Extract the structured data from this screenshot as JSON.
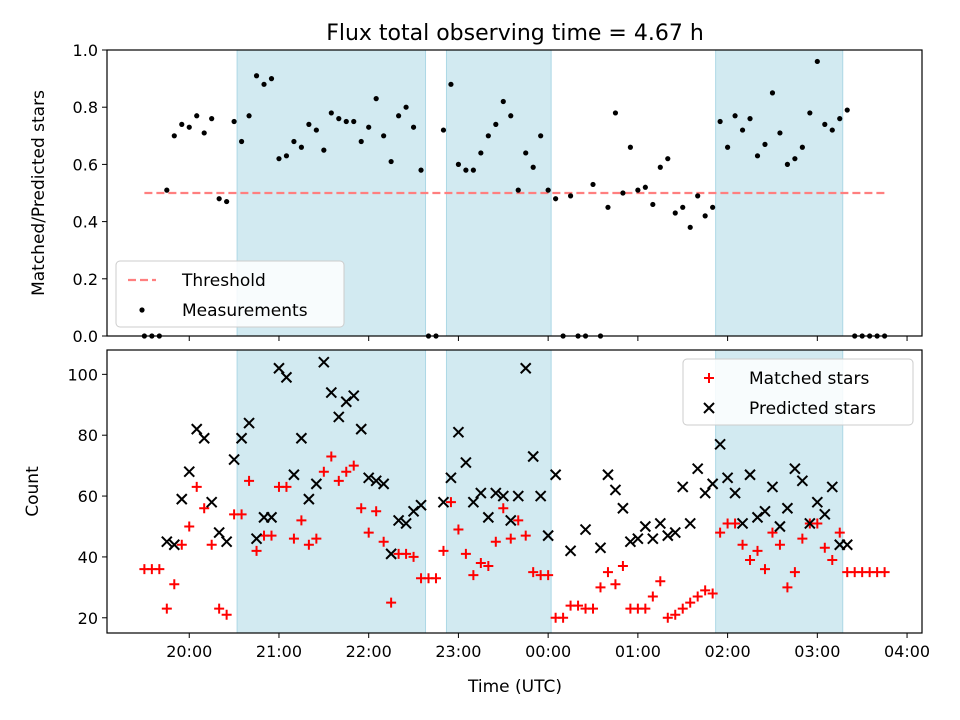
{
  "title": "Flux total observing time = 4.67 h",
  "xlabel": "Time (UTC)",
  "colors": {
    "shade": "#add8e6",
    "threshold": "#ff7f7f",
    "matched": "#ff0000",
    "predicted": "#000000",
    "measurement": "#000000"
  },
  "chart_data": [
    {
      "type": "scatter",
      "ylabel": "Matched/Predicted stars",
      "ylim": [
        0,
        1.0
      ],
      "yticks": [
        "0.0",
        "0.2",
        "0.4",
        "0.6",
        "0.8",
        "1.0"
      ],
      "xlim": [
        "19:05",
        "04:10"
      ],
      "xticks": [
        "20:00",
        "21:00",
        "22:00",
        "23:00",
        "00:00",
        "01:00",
        "02:00",
        "03:00",
        "04:00"
      ],
      "shaded_intervals": [
        [
          "20:32",
          "22:38"
        ],
        [
          "22:52",
          "00:02"
        ],
        [
          "01:52",
          "03:17"
        ]
      ],
      "legend": {
        "placement": "lower-left",
        "entries": [
          "Threshold",
          "Measurements"
        ]
      },
      "series": [
        {
          "name": "Threshold",
          "kind": "dashed-line",
          "x": [
            "19:30",
            "03:46"
          ],
          "y": [
            0.5,
            0.5
          ]
        },
        {
          "name": "Measurements",
          "kind": "points",
          "x": [
            "19:30",
            "19:35",
            "19:40",
            "19:45",
            "19:50",
            "19:55",
            "20:00",
            "20:05",
            "20:10",
            "20:15",
            "20:20",
            "20:25",
            "20:30",
            "20:35",
            "20:40",
            "20:45",
            "20:50",
            "20:55",
            "21:00",
            "21:05",
            "21:10",
            "21:15",
            "21:20",
            "21:25",
            "21:30",
            "21:35",
            "21:40",
            "21:45",
            "21:50",
            "21:55",
            "22:00",
            "22:05",
            "22:10",
            "22:15",
            "22:20",
            "22:25",
            "22:30",
            "22:35",
            "22:40",
            "22:45",
            "22:50",
            "22:55",
            "23:00",
            "23:05",
            "23:10",
            "23:15",
            "23:20",
            "23:25",
            "23:30",
            "23:35",
            "23:40",
            "23:45",
            "23:50",
            "23:55",
            "00:00",
            "00:05",
            "00:10",
            "00:15",
            "00:20",
            "00:25",
            "00:30",
            "00:35",
            "00:40",
            "00:45",
            "00:50",
            "00:55",
            "01:00",
            "01:05",
            "01:10",
            "01:15",
            "01:20",
            "01:25",
            "01:30",
            "01:35",
            "01:40",
            "01:45",
            "01:50",
            "01:55",
            "02:00",
            "02:05",
            "02:10",
            "02:15",
            "02:20",
            "02:25",
            "02:30",
            "02:35",
            "02:40",
            "02:45",
            "02:50",
            "02:55",
            "03:00",
            "03:05",
            "03:10",
            "03:15",
            "03:20",
            "03:25",
            "03:30",
            "03:35",
            "03:40",
            "03:45"
          ],
          "y": [
            0.0,
            0.0,
            0.0,
            0.51,
            0.7,
            0.74,
            0.73,
            0.77,
            0.71,
            0.76,
            0.48,
            0.47,
            0.75,
            0.68,
            0.77,
            0.91,
            0.88,
            0.9,
            0.62,
            0.63,
            0.68,
            0.66,
            0.74,
            0.72,
            0.65,
            0.78,
            0.76,
            0.75,
            0.75,
            0.68,
            0.73,
            0.83,
            0.7,
            0.61,
            0.77,
            0.8,
            0.73,
            0.58,
            0.0,
            0.0,
            0.72,
            0.88,
            0.6,
            0.58,
            0.58,
            0.64,
            0.7,
            0.74,
            0.82,
            0.77,
            0.51,
            0.64,
            0.59,
            0.7,
            0.51,
            0.48,
            0.0,
            0.49,
            0.0,
            0.0,
            0.53,
            0.0,
            0.45,
            0.78,
            0.5,
            0.66,
            0.51,
            0.52,
            0.46,
            0.59,
            0.62,
            0.43,
            0.45,
            0.38,
            0.49,
            0.42,
            0.45,
            0.75,
            0.66,
            0.77,
            0.72,
            0.76,
            0.63,
            0.67,
            0.85,
            0.71,
            0.6,
            0.62,
            0.66,
            0.78,
            0.96,
            0.74,
            0.72,
            0.76,
            0.79,
            0.0,
            0.0,
            0.0,
            0.0,
            0.0
          ]
        }
      ]
    },
    {
      "type": "scatter",
      "ylabel": "Count",
      "ylim": [
        15,
        108
      ],
      "yticks": [
        "20",
        "40",
        "60",
        "80",
        "100"
      ],
      "xlim": [
        "19:05",
        "04:10"
      ],
      "xticks": [
        "20:00",
        "21:00",
        "22:00",
        "23:00",
        "00:00",
        "01:00",
        "02:00",
        "03:00",
        "04:00"
      ],
      "shaded_intervals": [
        [
          "20:32",
          "22:38"
        ],
        [
          "22:52",
          "00:02"
        ],
        [
          "01:52",
          "03:17"
        ]
      ],
      "legend": {
        "placement": "top-right",
        "entries": [
          "Matched stars",
          "Predicted stars"
        ]
      },
      "series": [
        {
          "name": "Matched stars",
          "marker": "+",
          "x": [
            "19:30",
            "19:35",
            "19:40",
            "19:45",
            "19:50",
            "19:55",
            "20:00",
            "20:05",
            "20:10",
            "20:15",
            "20:20",
            "20:25",
            "20:30",
            "20:35",
            "20:40",
            "20:45",
            "20:50",
            "20:55",
            "21:00",
            "21:05",
            "21:10",
            "21:15",
            "21:20",
            "21:25",
            "21:30",
            "21:35",
            "21:40",
            "21:45",
            "21:50",
            "21:55",
            "22:00",
            "22:05",
            "22:10",
            "22:15",
            "22:20",
            "22:25",
            "22:30",
            "22:35",
            "22:40",
            "22:45",
            "22:50",
            "22:55",
            "23:00",
            "23:05",
            "23:10",
            "23:15",
            "23:20",
            "23:25",
            "23:30",
            "23:35",
            "23:40",
            "23:45",
            "23:50",
            "23:55",
            "00:00",
            "00:05",
            "00:10",
            "00:15",
            "00:20",
            "00:25",
            "00:30",
            "00:35",
            "00:40",
            "00:45",
            "00:50",
            "00:55",
            "01:00",
            "01:05",
            "01:10",
            "01:15",
            "01:20",
            "01:25",
            "01:30",
            "01:35",
            "01:40",
            "01:45",
            "01:50",
            "01:55",
            "02:00",
            "02:05",
            "02:10",
            "02:15",
            "02:20",
            "02:25",
            "02:30",
            "02:35",
            "02:40",
            "02:45",
            "02:50",
            "02:55",
            "03:00",
            "03:05",
            "03:10",
            "03:15",
            "03:20",
            "03:25",
            "03:30",
            "03:35",
            "03:40",
            "03:45"
          ],
          "y": [
            36,
            36,
            36,
            23,
            31,
            44,
            50,
            63,
            56,
            44,
            23,
            21,
            54,
            54,
            65,
            42,
            47,
            47,
            63,
            63,
            46,
            52,
            44,
            46,
            68,
            73,
            65,
            68,
            70,
            56,
            48,
            55,
            45,
            25,
            41,
            41,
            40,
            33,
            33,
            33,
            42,
            58,
            49,
            41,
            34,
            38,
            37,
            45,
            56,
            46,
            52,
            47,
            35,
            34,
            34,
            20,
            20,
            24,
            24,
            23,
            23,
            30,
            35,
            31,
            37,
            23,
            23,
            23,
            27,
            32,
            20,
            21,
            23,
            25,
            27,
            29,
            28,
            48,
            51,
            51,
            44,
            39,
            42,
            36,
            48,
            44,
            30,
            35,
            46,
            51,
            51,
            43,
            39,
            48,
            35,
            35,
            35,
            35,
            35,
            35
          ]
        },
        {
          "name": "Predicted stars",
          "marker": "x",
          "x": [
            "19:45",
            "19:50",
            "19:55",
            "20:00",
            "20:05",
            "20:10",
            "20:15",
            "20:20",
            "20:25",
            "20:30",
            "20:35",
            "20:40",
            "20:45",
            "20:50",
            "20:55",
            "21:00",
            "21:05",
            "21:10",
            "21:15",
            "21:20",
            "21:25",
            "21:30",
            "21:35",
            "21:40",
            "21:45",
            "21:50",
            "21:55",
            "22:00",
            "22:05",
            "22:10",
            "22:15",
            "22:20",
            "22:25",
            "22:30",
            "22:35",
            "22:50",
            "22:55",
            "23:00",
            "23:05",
            "23:10",
            "23:15",
            "23:20",
            "23:25",
            "23:30",
            "23:35",
            "23:40",
            "23:45",
            "23:50",
            "23:55",
            "00:00",
            "00:05",
            "00:15",
            "00:25",
            "00:35",
            "00:40",
            "00:45",
            "00:50",
            "00:55",
            "01:00",
            "01:05",
            "01:10",
            "01:15",
            "01:20",
            "01:25",
            "01:30",
            "01:35",
            "01:40",
            "01:45",
            "01:50",
            "01:55",
            "02:00",
            "02:05",
            "02:10",
            "02:15",
            "02:20",
            "02:25",
            "02:30",
            "02:35",
            "02:40",
            "02:45",
            "02:50",
            "02:55",
            "03:00",
            "03:05",
            "03:10",
            "03:15",
            "03:20"
          ],
          "y": [
            45,
            44,
            59,
            68,
            82,
            79,
            58,
            48,
            45,
            72,
            79,
            84,
            46,
            53,
            53,
            102,
            99,
            67,
            79,
            59,
            64,
            104,
            94,
            86,
            91,
            93,
            82,
            66,
            65,
            64,
            41,
            52,
            51,
            55,
            57,
            58,
            66,
            81,
            71,
            58,
            61,
            53,
            61,
            60,
            52,
            60,
            102,
            73,
            60,
            47,
            67,
            42,
            49,
            43,
            67,
            62,
            56,
            45,
            46,
            50,
            46,
            51,
            47,
            48,
            63,
            51,
            69,
            61,
            64,
            77,
            66,
            61,
            51,
            67,
            53,
            55,
            63,
            50,
            56,
            69,
            65,
            51,
            58,
            54,
            63,
            44,
            44
          ]
        }
      ]
    }
  ]
}
